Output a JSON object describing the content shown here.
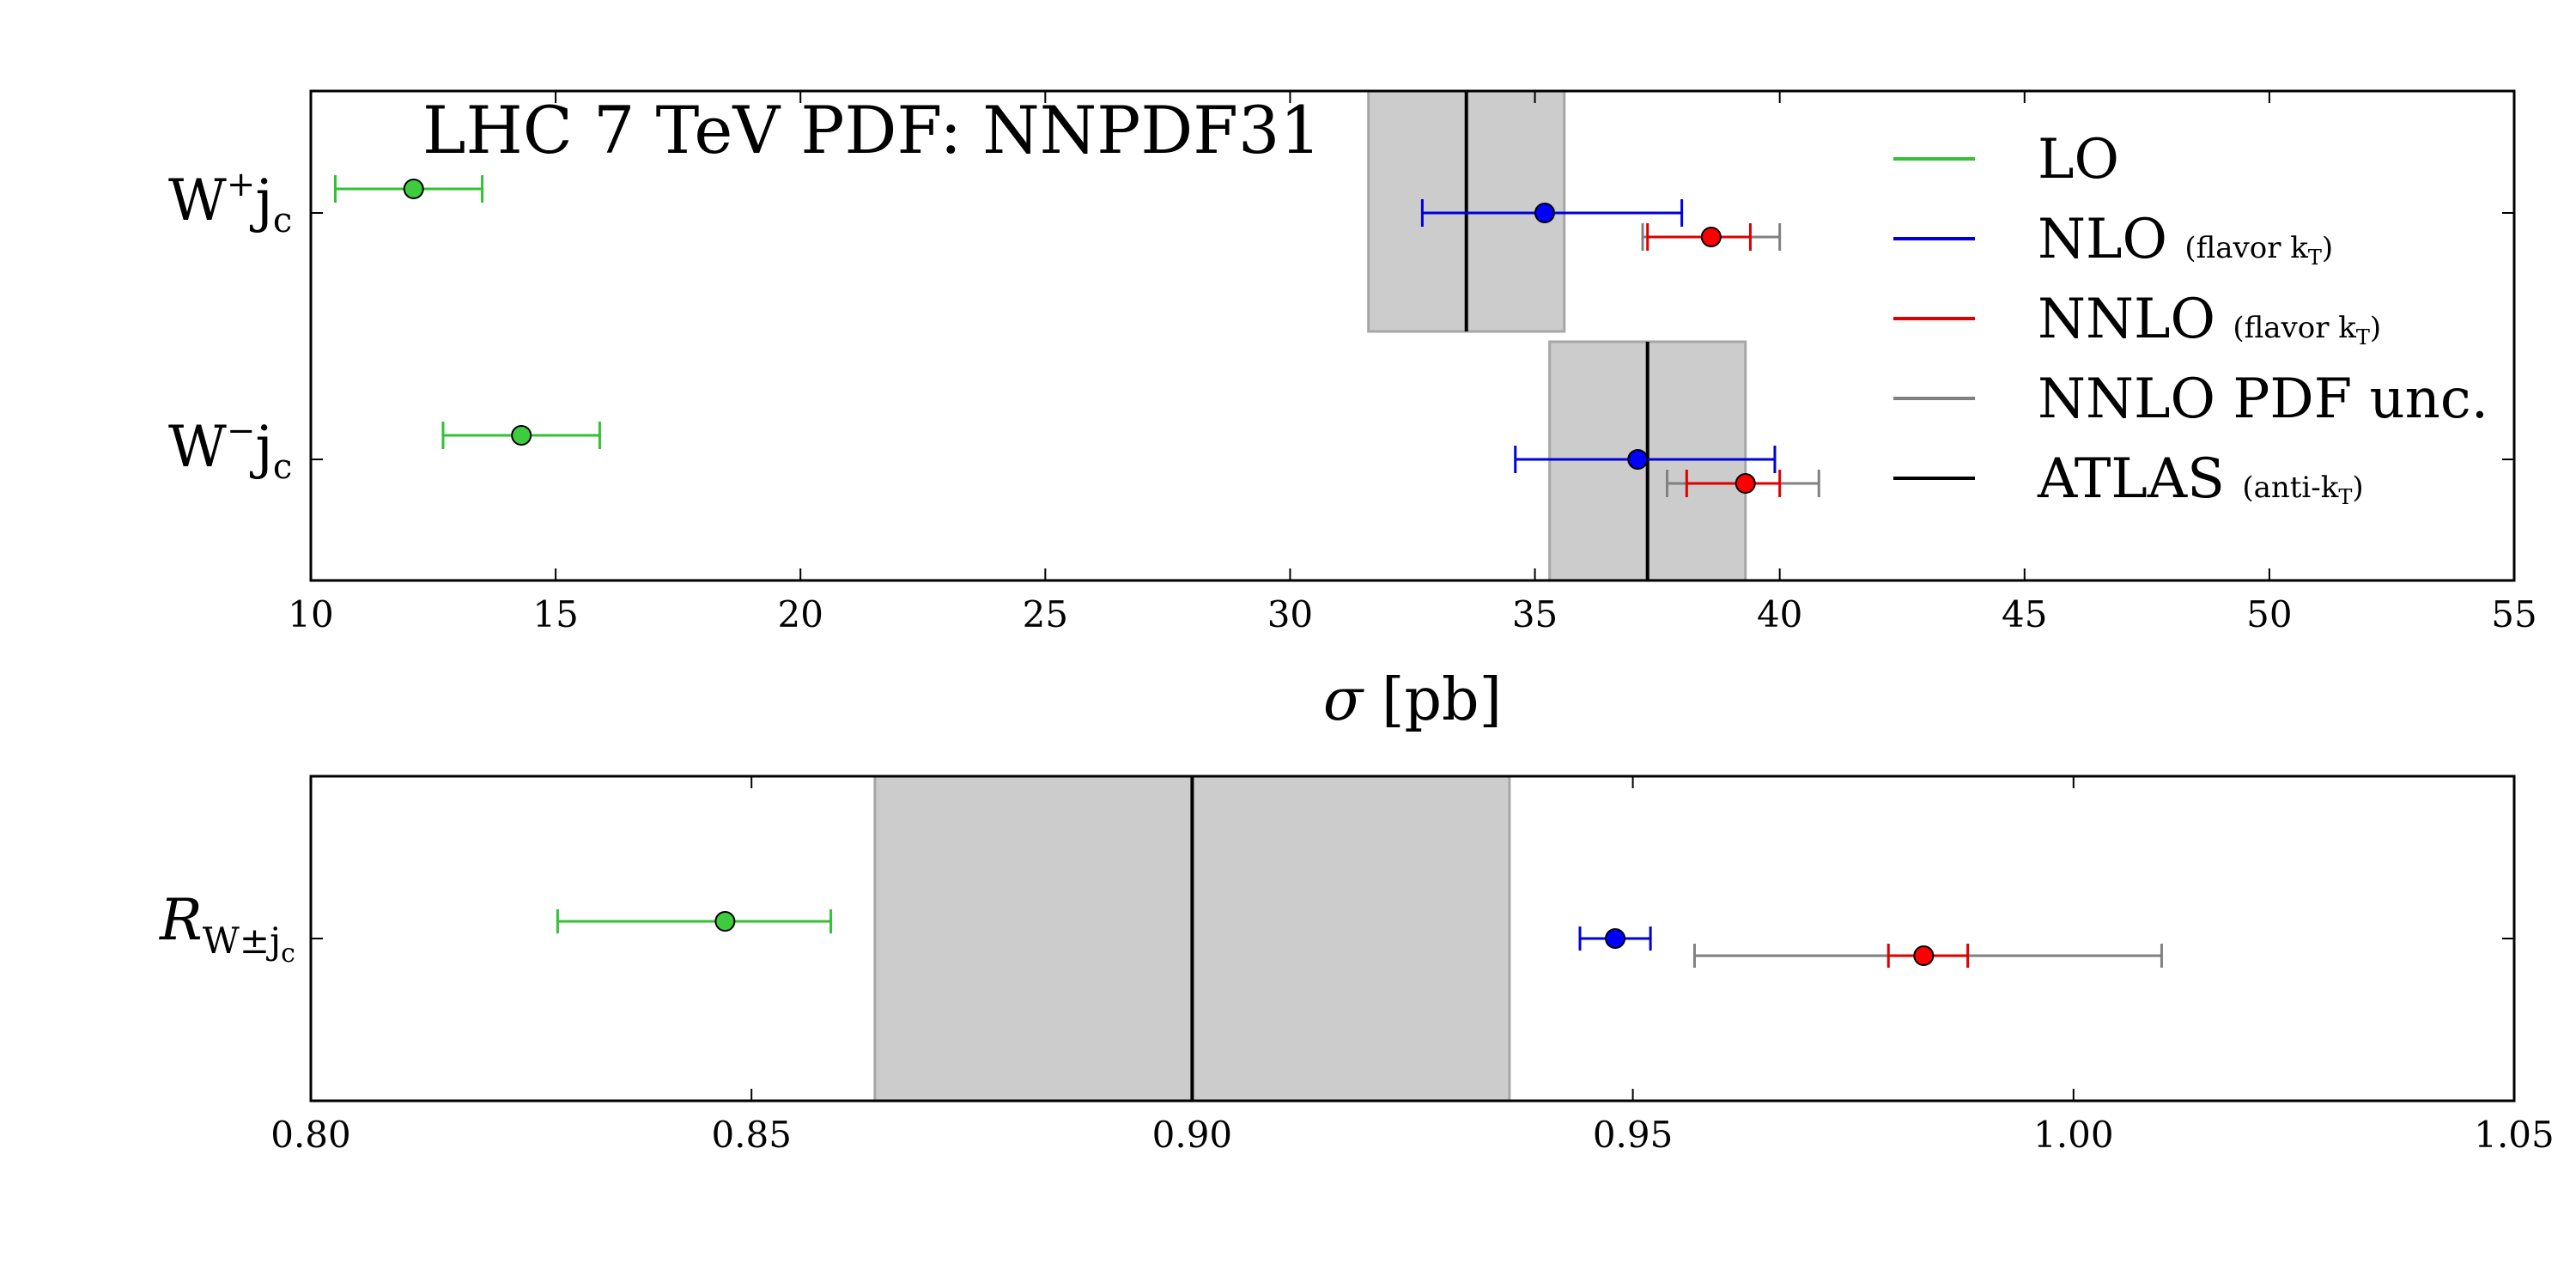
{
  "chart_data": [
    {
      "type": "scatter",
      "subtype": "horizontal-errorbar",
      "title": "LHC 7 TeV PDF: NNPDF31",
      "xlabel_symbol": "σ",
      "xlabel_unit": "[pb]",
      "xlim": [
        10,
        55
      ],
      "xticks": [
        10,
        15,
        20,
        25,
        30,
        35,
        40,
        45,
        50,
        55
      ],
      "rows": [
        {
          "label_base": "W",
          "label_sup": "+",
          "label_tail": "j",
          "label_sub": "c"
        },
        {
          "label_base": "W",
          "label_sup": "−",
          "label_tail": "j",
          "label_sub": "c"
        }
      ],
      "atlas_bands": [
        {
          "row": 0,
          "value": 33.6,
          "low": 31.6,
          "high": 35.6
        },
        {
          "row": 1,
          "value": 37.3,
          "low": 35.3,
          "high": 39.3
        }
      ],
      "series": [
        {
          "key": "lo",
          "points": [
            {
              "row": 0,
              "value": 12.1,
              "low": 10.5,
              "high": 13.5
            },
            {
              "row": 1,
              "value": 14.3,
              "low": 12.7,
              "high": 15.9
            }
          ]
        },
        {
          "key": "nlo",
          "points": [
            {
              "row": 0,
              "value": 35.2,
              "low": 32.7,
              "high": 38.0
            },
            {
              "row": 1,
              "value": 37.1,
              "low": 34.6,
              "high": 39.9
            }
          ]
        },
        {
          "key": "pdf",
          "points": [
            {
              "row": 0,
              "value": 38.6,
              "low": 37.2,
              "high": 40.0
            },
            {
              "row": 1,
              "value": 39.3,
              "low": 37.7,
              "high": 40.8
            }
          ]
        },
        {
          "key": "nnlo",
          "points": [
            {
              "row": 0,
              "value": 38.6,
              "low": 37.3,
              "high": 39.4
            },
            {
              "row": 1,
              "value": 39.3,
              "low": 38.1,
              "high": 40.0
            }
          ]
        }
      ]
    },
    {
      "type": "scatter",
      "subtype": "horizontal-errorbar",
      "xlim": [
        0.8,
        1.05
      ],
      "xticks": [
        "0.80",
        "0.85",
        "0.90",
        "0.95",
        "1.00",
        "1.05"
      ],
      "row_label": {
        "italic": "R",
        "sub": "W±j",
        "subsub": "c"
      },
      "atlas_band": {
        "value": 0.9,
        "low": 0.864,
        "high": 0.936
      },
      "series": [
        {
          "key": "lo",
          "value": 0.847,
          "low": 0.828,
          "high": 0.859
        },
        {
          "key": "nlo",
          "value": 0.948,
          "low": 0.944,
          "high": 0.952
        },
        {
          "key": "pdf",
          "value": 0.983,
          "low": 0.957,
          "high": 1.01
        },
        {
          "key": "nnlo",
          "value": 0.983,
          "low": 0.979,
          "high": 0.988
        }
      ]
    }
  ],
  "legend": {
    "placement": "top-right",
    "items": [
      {
        "key": "lo",
        "label": "LO",
        "note": "",
        "color": "#33c233"
      },
      {
        "key": "nlo",
        "label": "NLO",
        "note": "(flavor k",
        "note_sub": "T",
        "note_end": ")",
        "color": "#0000dd"
      },
      {
        "key": "nnlo",
        "label": "NNLO",
        "note": "(flavor k",
        "note_sub": "T",
        "note_end": ")",
        "color": "#dd0000"
      },
      {
        "key": "pdf",
        "label": "NNLO PDF unc.",
        "note": "",
        "color": "#808080"
      },
      {
        "key": "atlas",
        "label": "ATLAS",
        "note": "(anti-k",
        "note_sub": "T",
        "note_end": ")",
        "color": "#000000"
      }
    ]
  },
  "colors": {
    "lo_marker": "#3ecb3e",
    "nlo_marker": "#0000ff",
    "nnlo_marker": "#ff0000",
    "band_fill": "#cccccc",
    "band_edge": "#a6a6a6"
  }
}
